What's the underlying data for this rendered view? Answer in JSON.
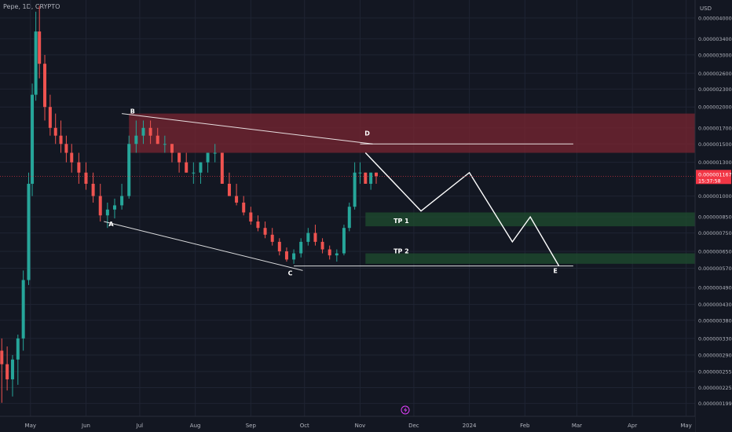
{
  "header": {
    "title": "Pepe, 1D, CRYPTO"
  },
  "price_axis": {
    "currency": "USD",
    "ticks": [
      {
        "label": "0.0000040000",
        "v": 4e-06
      },
      {
        "label": "0.0000034000",
        "v": 3.4e-06
      },
      {
        "label": "0.0000030000",
        "v": 3e-06
      },
      {
        "label": "0.0000026000",
        "v": 2.6e-06
      },
      {
        "label": "0.0000023000",
        "v": 2.3e-06
      },
      {
        "label": "0.0000020000",
        "v": 2e-06
      },
      {
        "label": "0.0000017000",
        "v": 1.7e-06
      },
      {
        "label": "0.0000015000",
        "v": 1.5e-06
      },
      {
        "label": "0.0000013000",
        "v": 1.3e-06
      },
      {
        "label": "0.0000010000",
        "v": 1e-06
      },
      {
        "label": "0.0000008500",
        "v": 8.5e-07
      },
      {
        "label": "0.0000007500",
        "v": 7.5e-07
      },
      {
        "label": "0.0000006500",
        "v": 6.5e-07
      },
      {
        "label": "0.0000005700",
        "v": 5.7e-07
      },
      {
        "label": "0.0000004900",
        "v": 4.9e-07
      },
      {
        "label": "0.0000004300",
        "v": 4.3e-07
      },
      {
        "label": "0.0000003800",
        "v": 3.8e-07
      },
      {
        "label": "0.0000003300",
        "v": 3.3e-07
      },
      {
        "label": "0.0000002900",
        "v": 2.9e-07
      },
      {
        "label": "0.0000002550",
        "v": 2.55e-07
      },
      {
        "label": "0.0000002250",
        "v": 2.25e-07
      },
      {
        "label": "0.0000001990",
        "v": 1.99e-07
      }
    ],
    "current_price": "0.0000011672",
    "countdown": "15:37:58",
    "current_price_color": "#f23645"
  },
  "time_axis": {
    "labels": [
      {
        "label": "May",
        "d": "2023-05-01"
      },
      {
        "label": "Jun",
        "d": "2023-06-01"
      },
      {
        "label": "Jul",
        "d": "2023-07-01"
      },
      {
        "label": "Aug",
        "d": "2023-08-01"
      },
      {
        "label": "Sep",
        "d": "2023-09-01"
      },
      {
        "label": "Oct",
        "d": "2023-10-01"
      },
      {
        "label": "Nov",
        "d": "2023-11-01"
      },
      {
        "label": "Dec",
        "d": "2023-12-01"
      },
      {
        "label": "2024",
        "d": "2024-01-01"
      },
      {
        "label": "Feb",
        "d": "2024-02-01"
      },
      {
        "label": "Mar",
        "d": "2024-03-01"
      },
      {
        "label": "Apr",
        "d": "2024-04-01"
      },
      {
        "label": "May",
        "d": "2024-05-01"
      }
    ]
  },
  "colors": {
    "background": "#131722",
    "up": "#26a69a",
    "down": "#ef5350",
    "resistance_zone": "#7a2632",
    "target_zone": "#1e4a2e",
    "drawing": "#ffffff"
  },
  "chart_data": {
    "type": "candlestick",
    "title": "Pepe, 1D, CRYPTO",
    "y_scale": "log",
    "ylim": [
      1.8e-07,
      4.6e-06
    ],
    "xlim": [
      "2023-04-14",
      "2024-05-06"
    ],
    "grid": true,
    "series": [
      {
        "x": "2023-04-15",
        "o": 3e-07,
        "h": 3.3e-07,
        "l": 2e-07,
        "c": 2.7e-07
      },
      {
        "x": "2023-04-18",
        "o": 2.7e-07,
        "h": 3.1e-07,
        "l": 2.2e-07,
        "c": 2.4e-07
      },
      {
        "x": "2023-04-21",
        "o": 2.4e-07,
        "h": 2.9e-07,
        "l": 2.1e-07,
        "c": 2.8e-07
      },
      {
        "x": "2023-04-24",
        "o": 2.8e-07,
        "h": 3.4e-07,
        "l": 2.3e-07,
        "c": 3.3e-07
      },
      {
        "x": "2023-04-27",
        "o": 3.3e-07,
        "h": 5.6e-07,
        "l": 3e-07,
        "c": 5.2e-07
      },
      {
        "x": "2023-04-30",
        "o": 5.2e-07,
        "h": 1.2e-06,
        "l": 5e-07,
        "c": 1.1e-06
      },
      {
        "x": "2023-05-02",
        "o": 1.1e-06,
        "h": 2.4e-06,
        "l": 1e-06,
        "c": 2.2e-06
      },
      {
        "x": "2023-05-04",
        "o": 2.2e-06,
        "h": 4.2e-06,
        "l": 2.1e-06,
        "c": 3.6e-06
      },
      {
        "x": "2023-05-06",
        "o": 3.6e-06,
        "h": 4.4e-06,
        "l": 2.5e-06,
        "c": 2.8e-06
      },
      {
        "x": "2023-05-09",
        "o": 2.8e-06,
        "h": 3e-06,
        "l": 1.8e-06,
        "c": 2e-06
      },
      {
        "x": "2023-05-12",
        "o": 2e-06,
        "h": 2.2e-06,
        "l": 1.6e-06,
        "c": 1.7e-06
      },
      {
        "x": "2023-05-15",
        "o": 1.7e-06,
        "h": 1.9e-06,
        "l": 1.5e-06,
        "c": 1.6e-06
      },
      {
        "x": "2023-05-18",
        "o": 1.6e-06,
        "h": 1.8e-06,
        "l": 1.4e-06,
        "c": 1.5e-06
      },
      {
        "x": "2023-05-21",
        "o": 1.5e-06,
        "h": 1.6e-06,
        "l": 1.3e-06,
        "c": 1.4e-06
      },
      {
        "x": "2023-05-24",
        "o": 1.4e-06,
        "h": 1.5e-06,
        "l": 1.2e-06,
        "c": 1.3e-06
      },
      {
        "x": "2023-05-28",
        "o": 1.3e-06,
        "h": 1.4e-06,
        "l": 1.1e-06,
        "c": 1.2e-06
      },
      {
        "x": "2023-06-01",
        "o": 1.2e-06,
        "h": 1.3e-06,
        "l": 1.05e-06,
        "c": 1.1e-06
      },
      {
        "x": "2023-06-05",
        "o": 1.1e-06,
        "h": 1.2e-06,
        "l": 9.5e-07,
        "c": 1e-06
      },
      {
        "x": "2023-06-09",
        "o": 1e-06,
        "h": 1.1e-06,
        "l": 8.2e-07,
        "c": 8.6e-07
      },
      {
        "x": "2023-06-13",
        "o": 8.6e-07,
        "h": 9.5e-07,
        "l": 7.8e-07,
        "c": 9e-07
      },
      {
        "x": "2023-06-17",
        "o": 9e-07,
        "h": 9.8e-07,
        "l": 8.4e-07,
        "c": 9.3e-07
      },
      {
        "x": "2023-06-21",
        "o": 9.3e-07,
        "h": 1.1e-06,
        "l": 9e-07,
        "c": 1e-06
      },
      {
        "x": "2023-06-25",
        "o": 1e-06,
        "h": 1.6e-06,
        "l": 9.8e-07,
        "c": 1.5e-06
      },
      {
        "x": "2023-06-29",
        "o": 1.5e-06,
        "h": 1.8e-06,
        "l": 1.4e-06,
        "c": 1.6e-06
      },
      {
        "x": "2023-07-03",
        "o": 1.6e-06,
        "h": 1.8e-06,
        "l": 1.5e-06,
        "c": 1.7e-06
      },
      {
        "x": "2023-07-07",
        "o": 1.7e-06,
        "h": 1.8e-06,
        "l": 1.5e-06,
        "c": 1.6e-06
      },
      {
        "x": "2023-07-11",
        "o": 1.6e-06,
        "h": 1.7e-06,
        "l": 1.5e-06,
        "c": 1.5e-06
      },
      {
        "x": "2023-07-15",
        "o": 1.5e-06,
        "h": 1.6e-06,
        "l": 1.4e-06,
        "c": 1.5e-06
      },
      {
        "x": "2023-07-19",
        "o": 1.5e-06,
        "h": 1.5e-06,
        "l": 1.3e-06,
        "c": 1.4e-06
      },
      {
        "x": "2023-07-23",
        "o": 1.4e-06,
        "h": 1.4e-06,
        "l": 1.2e-06,
        "c": 1.3e-06
      },
      {
        "x": "2023-07-27",
        "o": 1.3e-06,
        "h": 1.4e-06,
        "l": 1.2e-06,
        "c": 1.2e-06
      },
      {
        "x": "2023-07-31",
        "o": 1.2e-06,
        "h": 1.3e-06,
        "l": 1.1e-06,
        "c": 1.2e-06
      },
      {
        "x": "2023-08-04",
        "o": 1.2e-06,
        "h": 1.3e-06,
        "l": 1.1e-06,
        "c": 1.3e-06
      },
      {
        "x": "2023-08-08",
        "o": 1.3e-06,
        "h": 1.4e-06,
        "l": 1.2e-06,
        "c": 1.4e-06
      },
      {
        "x": "2023-08-12",
        "o": 1.4e-06,
        "h": 1.5e-06,
        "l": 1.3e-06,
        "c": 1.4e-06
      },
      {
        "x": "2023-08-16",
        "o": 1.4e-06,
        "h": 1.4e-06,
        "l": 1.1e-06,
        "c": 1.1e-06
      },
      {
        "x": "2023-08-20",
        "o": 1.1e-06,
        "h": 1.2e-06,
        "l": 1e-06,
        "c": 1e-06
      },
      {
        "x": "2023-08-24",
        "o": 1e-06,
        "h": 1.1e-06,
        "l": 9.3e-07,
        "c": 9.5e-07
      },
      {
        "x": "2023-08-28",
        "o": 9.5e-07,
        "h": 1e-06,
        "l": 8.6e-07,
        "c": 8.8e-07
      },
      {
        "x": "2023-09-01",
        "o": 8.8e-07,
        "h": 9.2e-07,
        "l": 8e-07,
        "c": 8.2e-07
      },
      {
        "x": "2023-09-05",
        "o": 8.2e-07,
        "h": 8.6e-07,
        "l": 7.6e-07,
        "c": 7.8e-07
      },
      {
        "x": "2023-09-09",
        "o": 7.8e-07,
        "h": 8.2e-07,
        "l": 7.2e-07,
        "c": 7.4e-07
      },
      {
        "x": "2023-09-13",
        "o": 7.4e-07,
        "h": 7.8e-07,
        "l": 6.8e-07,
        "c": 7e-07
      },
      {
        "x": "2023-09-17",
        "o": 7e-07,
        "h": 7.2e-07,
        "l": 6.3e-07,
        "c": 6.5e-07
      },
      {
        "x": "2023-09-21",
        "o": 6.5e-07,
        "h": 6.7e-07,
        "l": 6e-07,
        "c": 6.1e-07
      },
      {
        "x": "2023-09-25",
        "o": 6.1e-07,
        "h": 6.6e-07,
        "l": 5.9e-07,
        "c": 6.4e-07
      },
      {
        "x": "2023-09-29",
        "o": 6.4e-07,
        "h": 7.2e-07,
        "l": 6.2e-07,
        "c": 7e-07
      },
      {
        "x": "2023-10-03",
        "o": 7e-07,
        "h": 7.8e-07,
        "l": 6.8e-07,
        "c": 7.5e-07
      },
      {
        "x": "2023-10-07",
        "o": 7.5e-07,
        "h": 8e-07,
        "l": 6.8e-07,
        "c": 7e-07
      },
      {
        "x": "2023-10-11",
        "o": 7e-07,
        "h": 7.2e-07,
        "l": 6.4e-07,
        "c": 6.6e-07
      },
      {
        "x": "2023-10-15",
        "o": 6.6e-07,
        "h": 6.8e-07,
        "l": 6.1e-07,
        "c": 6.3e-07
      },
      {
        "x": "2023-10-19",
        "o": 6.3e-07,
        "h": 6.6e-07,
        "l": 6e-07,
        "c": 6.4e-07
      },
      {
        "x": "2023-10-23",
        "o": 6.4e-07,
        "h": 8e-07,
        "l": 6.3e-07,
        "c": 7.8e-07
      },
      {
        "x": "2023-10-26",
        "o": 7.8e-07,
        "h": 9.5e-07,
        "l": 7.6e-07,
        "c": 9.2e-07
      },
      {
        "x": "2023-10-29",
        "o": 9.2e-07,
        "h": 1.3e-06,
        "l": 9e-07,
        "c": 1.2e-06
      },
      {
        "x": "2023-11-01",
        "o": 1.2e-06,
        "h": 1.3e-06,
        "l": 1.1e-06,
        "c": 1.2e-06
      },
      {
        "x": "2023-11-04",
        "o": 1.2e-06,
        "h": 1.2e-06,
        "l": 1.1e-06,
        "c": 1.1e-06
      },
      {
        "x": "2023-11-07",
        "o": 1.1e-06,
        "h": 1.2e-06,
        "l": 1.05e-06,
        "c": 1.2e-06
      },
      {
        "x": "2023-11-10",
        "o": 1.2e-06,
        "h": 1.2e-06,
        "l": 1.1e-06,
        "c": 1.1672e-06
      }
    ]
  },
  "annotations": {
    "labels": [
      {
        "text": "A",
        "d": "2023-06-15",
        "v": 7.9e-07
      },
      {
        "text": "B",
        "d": "2023-06-27",
        "v": 1.9e-06
      },
      {
        "text": "C",
        "d": "2023-09-23",
        "v": 5.4e-07
      },
      {
        "text": "D",
        "d": "2023-11-05",
        "v": 1.6e-06
      },
      {
        "text": "E",
        "d": "2024-02-18",
        "v": 5.5e-07
      },
      {
        "text": "TP 1",
        "d": "2023-11-24",
        "v": 8.1e-07
      },
      {
        "text": "TP 2",
        "d": "2023-11-24",
        "v": 6.4e-07
      }
    ],
    "zones": [
      {
        "name": "resistance",
        "d1": "2023-06-25",
        "d2": "2024-05-06",
        "v_low": 1.4e-06,
        "v_high": 1.9e-06
      },
      {
        "name": "tp1",
        "d1": "2023-11-04",
        "d2": "2024-05-06",
        "v_low": 7.9e-07,
        "v_high": 8.8e-07
      },
      {
        "name": "tp2",
        "d1": "2023-11-04",
        "d2": "2024-05-06",
        "v_low": 5.9e-07,
        "v_high": 6.4e-07
      }
    ],
    "lines": [
      {
        "name": "upper-trendline",
        "d1": "2023-06-21",
        "v1": 1.9e-06,
        "d2": "2023-11-08",
        "v2": 1.5e-06
      },
      {
        "name": "lower-trendline",
        "d1": "2023-06-11",
        "v1": 8.2e-07,
        "d2": "2023-09-30",
        "v2": 5.6e-07
      },
      {
        "name": "d-level-line",
        "d1": "2023-11-01",
        "v1": 1.5e-06,
        "d2": "2024-02-28",
        "v2": 1.5e-06
      },
      {
        "name": "e-level-line",
        "d1": "2023-09-25",
        "v1": 5.8e-07,
        "d2": "2024-02-28",
        "v2": 5.8e-07
      }
    ],
    "projection": [
      {
        "d": "2023-11-04",
        "v": 1.4e-06
      },
      {
        "d": "2023-12-05",
        "v": 8.9e-07
      },
      {
        "d": "2024-01-01",
        "v": 1.2e-06
      },
      {
        "d": "2024-01-25",
        "v": 7e-07
      },
      {
        "d": "2024-02-04",
        "v": 8.5e-07
      },
      {
        "d": "2024-02-20",
        "v": 5.8e-07
      }
    ]
  }
}
